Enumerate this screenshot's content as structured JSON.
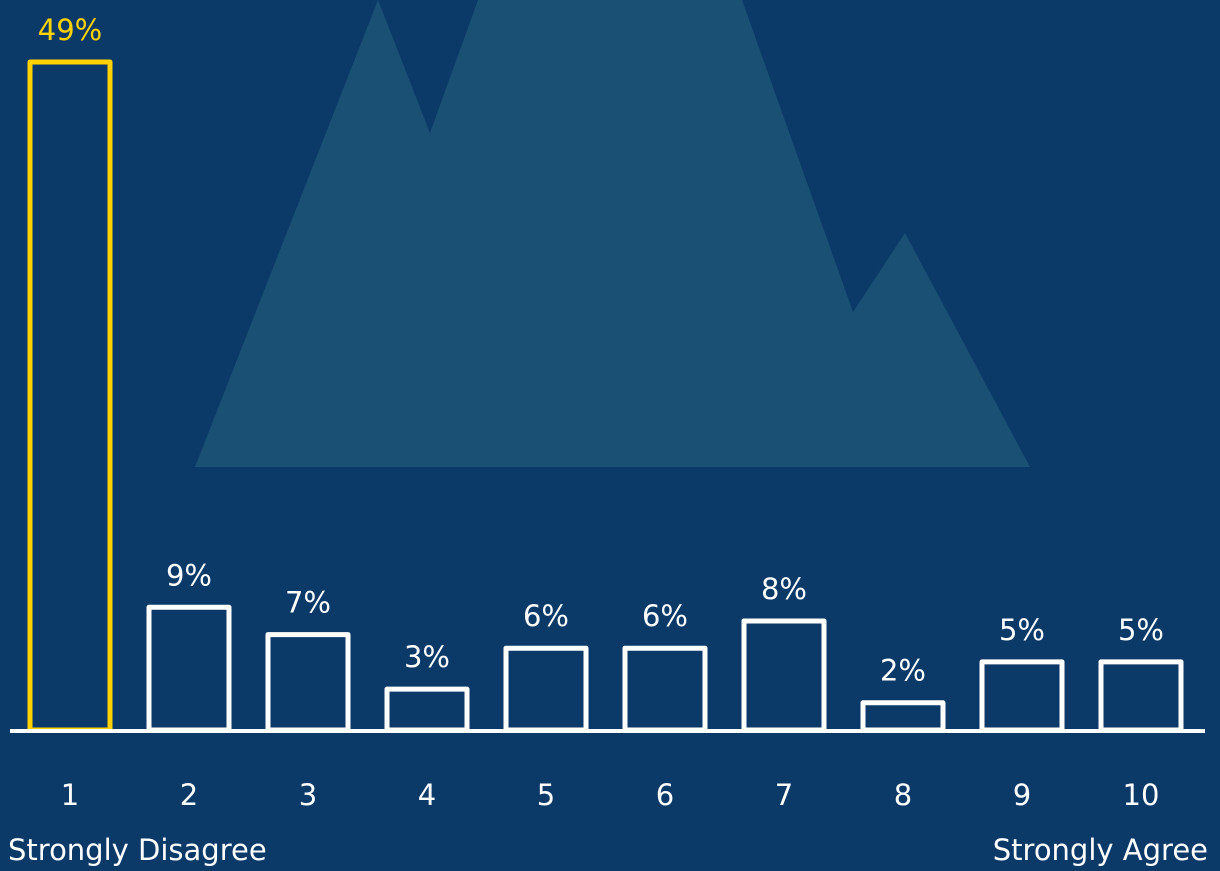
{
  "chart_data": {
    "type": "bar",
    "categories": [
      "1",
      "2",
      "3",
      "4",
      "5",
      "6",
      "7",
      "8",
      "9",
      "10"
    ],
    "values": [
      49,
      9,
      7,
      3,
      6,
      6,
      8,
      2,
      5,
      5
    ],
    "value_labels": [
      "49%",
      "9%",
      "7%",
      "3%",
      "6%",
      "6%",
      "8%",
      "2%",
      "5%",
      "5%"
    ],
    "colors": [
      "#ffd200",
      "#ffffff",
      "#ffffff",
      "#ffffff",
      "#ffffff",
      "#ffffff",
      "#ffffff",
      "#ffffff",
      "#ffffff",
      "#ffffff"
    ],
    "scale_labels": {
      "low": "Strongly Disagree",
      "high": "Strongly Agree"
    }
  }
}
